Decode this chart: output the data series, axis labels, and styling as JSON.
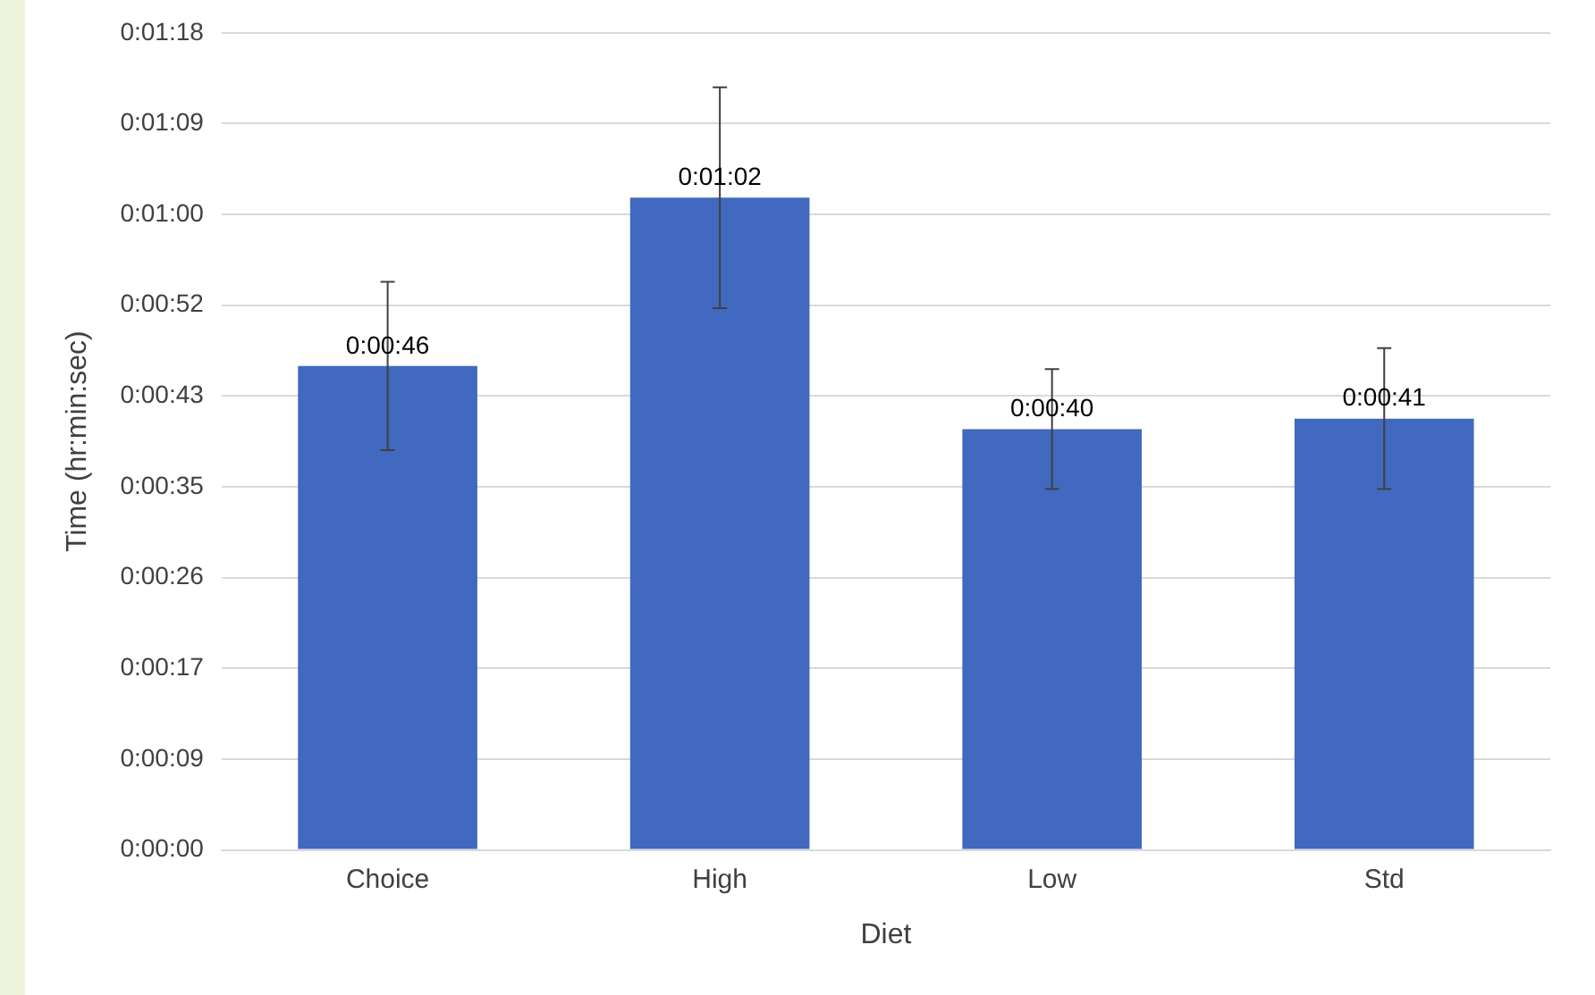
{
  "chart_data": {
    "type": "bar",
    "xlabel": "Diet",
    "ylabel": "Time (hr:min:sec)",
    "categories": [
      "Choice",
      "High",
      "Low",
      "Std"
    ],
    "values": [
      46,
      62,
      40,
      41
    ],
    "value_labels": [
      "0:00:46",
      "0:01:02",
      "0:00:40",
      "0:00:41"
    ],
    "errors": [
      8,
      10.5,
      5.7,
      6.7
    ],
    "color": "#4169bf",
    "ylim": [
      0,
      77.67
    ],
    "yticks": [
      {
        "value": 0,
        "label": "0:00:00"
      },
      {
        "value": 8.63,
        "label": "0:00:09"
      },
      {
        "value": 17.26,
        "label": "0:00:17"
      },
      {
        "value": 25.89,
        "label": "0:00:26"
      },
      {
        "value": 34.52,
        "label": "0:00:35"
      },
      {
        "value": 43.15,
        "label": "0:00:43"
      },
      {
        "value": 51.78,
        "label": "0:00:52"
      },
      {
        "value": 60.41,
        "label": "0:01:00"
      },
      {
        "value": 69.04,
        "label": "0:01:09"
      },
      {
        "value": 77.67,
        "label": "0:01:18"
      }
    ],
    "grid": "y",
    "legend": false
  }
}
